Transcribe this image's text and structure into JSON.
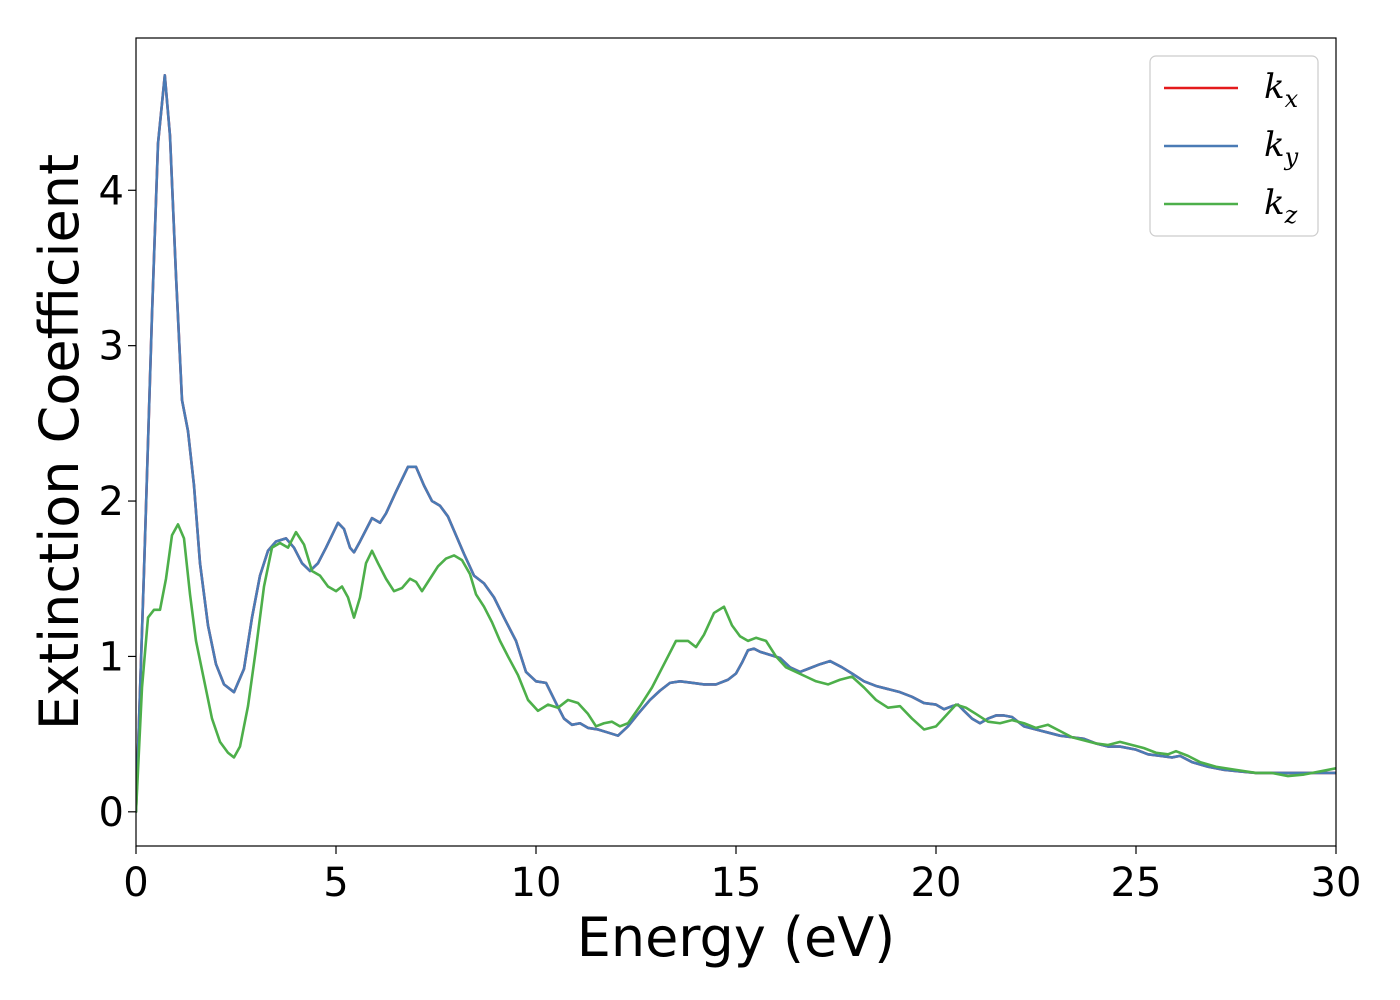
{
  "chart_data": {
    "type": "line",
    "title": "",
    "xlabel": "Energy (eV)",
    "ylabel": "Extinction Coefficient",
    "xlim": [
      0,
      30
    ],
    "ylim": [
      -0.22,
      4.98
    ],
    "xticks": [
      0,
      5,
      10,
      15,
      20,
      25,
      30
    ],
    "yticks": [
      0,
      1,
      2,
      3,
      4
    ],
    "grid": false,
    "legend_position": "top-right",
    "series": [
      {
        "name": "k_x",
        "legend_main": "k",
        "legend_sub": "x",
        "color": "#e41a1c",
        "x": [
          0,
          0.2,
          0.4,
          0.55,
          0.72,
          0.85,
          1.0,
          1.15,
          1.3,
          1.45,
          1.6,
          1.8,
          2.0,
          2.2,
          2.45,
          2.7,
          2.9,
          3.1,
          3.3,
          3.5,
          3.75,
          3.95,
          4.15,
          4.35,
          4.55,
          4.75,
          5.05,
          5.2,
          5.35,
          5.45,
          5.6,
          5.9,
          6.1,
          6.25,
          6.5,
          6.8,
          7.0,
          7.2,
          7.4,
          7.6,
          7.8,
          8.0,
          8.2,
          8.45,
          8.7,
          8.95,
          9.2,
          9.5,
          9.75,
          10.0,
          10.25,
          10.5,
          10.7,
          10.9,
          11.1,
          11.3,
          11.55,
          11.8,
          12.05,
          12.3,
          12.55,
          12.85,
          13.1,
          13.35,
          13.6,
          13.9,
          14.2,
          14.5,
          14.8,
          15.0,
          15.15,
          15.3,
          15.45,
          15.6,
          15.85,
          16.1,
          16.35,
          16.6,
          16.8,
          17.1,
          17.35,
          17.65,
          17.9,
          18.2,
          18.5,
          18.8,
          19.1,
          19.4,
          19.7,
          20.0,
          20.2,
          20.4,
          20.55,
          20.7,
          20.9,
          21.1,
          21.3,
          21.5,
          21.7,
          21.9,
          22.2,
          22.5,
          22.8,
          23.1,
          23.4,
          23.7,
          24.0,
          24.3,
          24.6,
          25.0,
          25.3,
          25.6,
          25.9,
          26.1,
          26.4,
          26.8,
          27.2,
          27.6,
          28.0,
          28.4,
          28.8,
          29.2,
          29.6,
          30.0
        ],
        "y": [
          0.0,
          1.55,
          3.2,
          4.3,
          4.74,
          4.35,
          3.45,
          2.65,
          2.45,
          2.1,
          1.6,
          1.2,
          0.95,
          0.82,
          0.77,
          0.92,
          1.25,
          1.52,
          1.68,
          1.74,
          1.76,
          1.7,
          1.6,
          1.55,
          1.6,
          1.7,
          1.86,
          1.82,
          1.7,
          1.67,
          1.74,
          1.89,
          1.86,
          1.92,
          2.06,
          2.22,
          2.22,
          2.1,
          2.0,
          1.97,
          1.9,
          1.78,
          1.66,
          1.52,
          1.47,
          1.38,
          1.25,
          1.1,
          0.9,
          0.84,
          0.83,
          0.7,
          0.6,
          0.56,
          0.57,
          0.54,
          0.53,
          0.51,
          0.49,
          0.55,
          0.63,
          0.72,
          0.78,
          0.83,
          0.84,
          0.83,
          0.82,
          0.82,
          0.85,
          0.89,
          0.96,
          1.04,
          1.05,
          1.03,
          1.01,
          0.99,
          0.93,
          0.9,
          0.92,
          0.95,
          0.97,
          0.93,
          0.89,
          0.84,
          0.81,
          0.79,
          0.77,
          0.74,
          0.7,
          0.69,
          0.66,
          0.68,
          0.69,
          0.65,
          0.6,
          0.57,
          0.6,
          0.62,
          0.62,
          0.61,
          0.55,
          0.53,
          0.51,
          0.49,
          0.48,
          0.47,
          0.44,
          0.42,
          0.42,
          0.4,
          0.37,
          0.36,
          0.35,
          0.36,
          0.32,
          0.29,
          0.27,
          0.26,
          0.25,
          0.25,
          0.25,
          0.25,
          0.25,
          0.25
        ]
      },
      {
        "name": "k_y",
        "legend_main": "k",
        "legend_sub": "y",
        "color": "#4a7bb5",
        "x": [
          0,
          0.2,
          0.4,
          0.55,
          0.72,
          0.85,
          1.0,
          1.15,
          1.3,
          1.45,
          1.6,
          1.8,
          2.0,
          2.2,
          2.45,
          2.7,
          2.9,
          3.1,
          3.3,
          3.5,
          3.75,
          3.95,
          4.15,
          4.35,
          4.55,
          4.75,
          5.05,
          5.2,
          5.35,
          5.45,
          5.6,
          5.9,
          6.1,
          6.25,
          6.5,
          6.8,
          7.0,
          7.2,
          7.4,
          7.6,
          7.8,
          8.0,
          8.2,
          8.45,
          8.7,
          8.95,
          9.2,
          9.5,
          9.75,
          10.0,
          10.25,
          10.5,
          10.7,
          10.9,
          11.1,
          11.3,
          11.55,
          11.8,
          12.05,
          12.3,
          12.55,
          12.85,
          13.1,
          13.35,
          13.6,
          13.9,
          14.2,
          14.5,
          14.8,
          15.0,
          15.15,
          15.3,
          15.45,
          15.6,
          15.85,
          16.1,
          16.35,
          16.6,
          16.8,
          17.1,
          17.35,
          17.65,
          17.9,
          18.2,
          18.5,
          18.8,
          19.1,
          19.4,
          19.7,
          20.0,
          20.2,
          20.4,
          20.55,
          20.7,
          20.9,
          21.1,
          21.3,
          21.5,
          21.7,
          21.9,
          22.2,
          22.5,
          22.8,
          23.1,
          23.4,
          23.7,
          24.0,
          24.3,
          24.6,
          25.0,
          25.3,
          25.6,
          25.9,
          26.1,
          26.4,
          26.8,
          27.2,
          27.6,
          28.0,
          28.4,
          28.8,
          29.2,
          29.6,
          30.0
        ],
        "y": [
          0.0,
          1.55,
          3.2,
          4.3,
          4.74,
          4.35,
          3.45,
          2.65,
          2.45,
          2.1,
          1.6,
          1.2,
          0.95,
          0.82,
          0.77,
          0.92,
          1.25,
          1.52,
          1.68,
          1.74,
          1.76,
          1.7,
          1.6,
          1.55,
          1.6,
          1.7,
          1.86,
          1.82,
          1.7,
          1.67,
          1.74,
          1.89,
          1.86,
          1.92,
          2.06,
          2.22,
          2.22,
          2.1,
          2.0,
          1.97,
          1.9,
          1.78,
          1.66,
          1.52,
          1.47,
          1.38,
          1.25,
          1.1,
          0.9,
          0.84,
          0.83,
          0.7,
          0.6,
          0.56,
          0.57,
          0.54,
          0.53,
          0.51,
          0.49,
          0.55,
          0.63,
          0.72,
          0.78,
          0.83,
          0.84,
          0.83,
          0.82,
          0.82,
          0.85,
          0.89,
          0.96,
          1.04,
          1.05,
          1.03,
          1.01,
          0.99,
          0.93,
          0.9,
          0.92,
          0.95,
          0.97,
          0.93,
          0.89,
          0.84,
          0.81,
          0.79,
          0.77,
          0.74,
          0.7,
          0.69,
          0.66,
          0.68,
          0.69,
          0.65,
          0.6,
          0.57,
          0.6,
          0.62,
          0.62,
          0.61,
          0.55,
          0.53,
          0.51,
          0.49,
          0.48,
          0.47,
          0.44,
          0.42,
          0.42,
          0.4,
          0.37,
          0.36,
          0.35,
          0.36,
          0.32,
          0.29,
          0.27,
          0.26,
          0.25,
          0.25,
          0.25,
          0.25,
          0.25,
          0.25
        ]
      },
      {
        "name": "k_z",
        "legend_main": "k",
        "legend_sub": "z",
        "color": "#4daf4a",
        "x": [
          0,
          0.15,
          0.3,
          0.45,
          0.6,
          0.75,
          0.9,
          1.05,
          1.2,
          1.35,
          1.5,
          1.7,
          1.9,
          2.1,
          2.3,
          2.45,
          2.6,
          2.8,
          3.0,
          3.2,
          3.4,
          3.6,
          3.8,
          4.0,
          4.2,
          4.4,
          4.6,
          4.8,
          5.0,
          5.15,
          5.3,
          5.45,
          5.6,
          5.75,
          5.9,
          6.05,
          6.25,
          6.45,
          6.65,
          6.85,
          7.0,
          7.15,
          7.35,
          7.55,
          7.75,
          7.95,
          8.15,
          8.35,
          8.5,
          8.7,
          8.9,
          9.1,
          9.3,
          9.55,
          9.8,
          10.05,
          10.3,
          10.55,
          10.8,
          11.05,
          11.3,
          11.5,
          11.7,
          11.9,
          12.1,
          12.3,
          12.6,
          12.9,
          13.2,
          13.5,
          13.8,
          14.0,
          14.2,
          14.45,
          14.7,
          14.9,
          15.1,
          15.3,
          15.5,
          15.75,
          16.0,
          16.25,
          16.5,
          16.75,
          17.0,
          17.3,
          17.6,
          17.9,
          18.2,
          18.5,
          18.8,
          19.1,
          19.4,
          19.7,
          20.0,
          20.25,
          20.5,
          20.75,
          21.0,
          21.3,
          21.6,
          21.9,
          22.2,
          22.5,
          22.8,
          23.1,
          23.4,
          23.7,
          24.0,
          24.3,
          24.6,
          24.9,
          25.2,
          25.5,
          25.8,
          26.0,
          26.3,
          26.6,
          27.0,
          27.5,
          28.0,
          28.4,
          28.8,
          29.2,
          29.6,
          30.0
        ],
        "y": [
          0.0,
          0.8,
          1.25,
          1.3,
          1.3,
          1.5,
          1.78,
          1.85,
          1.76,
          1.4,
          1.1,
          0.85,
          0.6,
          0.45,
          0.38,
          0.35,
          0.42,
          0.68,
          1.05,
          1.45,
          1.7,
          1.73,
          1.7,
          1.8,
          1.72,
          1.55,
          1.52,
          1.45,
          1.42,
          1.45,
          1.38,
          1.25,
          1.38,
          1.6,
          1.68,
          1.6,
          1.5,
          1.42,
          1.44,
          1.5,
          1.48,
          1.42,
          1.5,
          1.58,
          1.63,
          1.65,
          1.62,
          1.53,
          1.4,
          1.32,
          1.22,
          1.1,
          1.0,
          0.88,
          0.72,
          0.65,
          0.69,
          0.67,
          0.72,
          0.7,
          0.63,
          0.55,
          0.57,
          0.58,
          0.55,
          0.57,
          0.68,
          0.8,
          0.95,
          1.1,
          1.1,
          1.06,
          1.14,
          1.28,
          1.32,
          1.2,
          1.13,
          1.1,
          1.12,
          1.1,
          1.0,
          0.93,
          0.9,
          0.87,
          0.84,
          0.82,
          0.85,
          0.87,
          0.8,
          0.72,
          0.67,
          0.68,
          0.6,
          0.53,
          0.55,
          0.62,
          0.69,
          0.67,
          0.63,
          0.58,
          0.57,
          0.59,
          0.57,
          0.54,
          0.56,
          0.52,
          0.48,
          0.46,
          0.44,
          0.43,
          0.45,
          0.43,
          0.41,
          0.38,
          0.37,
          0.39,
          0.36,
          0.32,
          0.29,
          0.27,
          0.25,
          0.25,
          0.23,
          0.24,
          0.26,
          0.28
        ]
      }
    ]
  }
}
